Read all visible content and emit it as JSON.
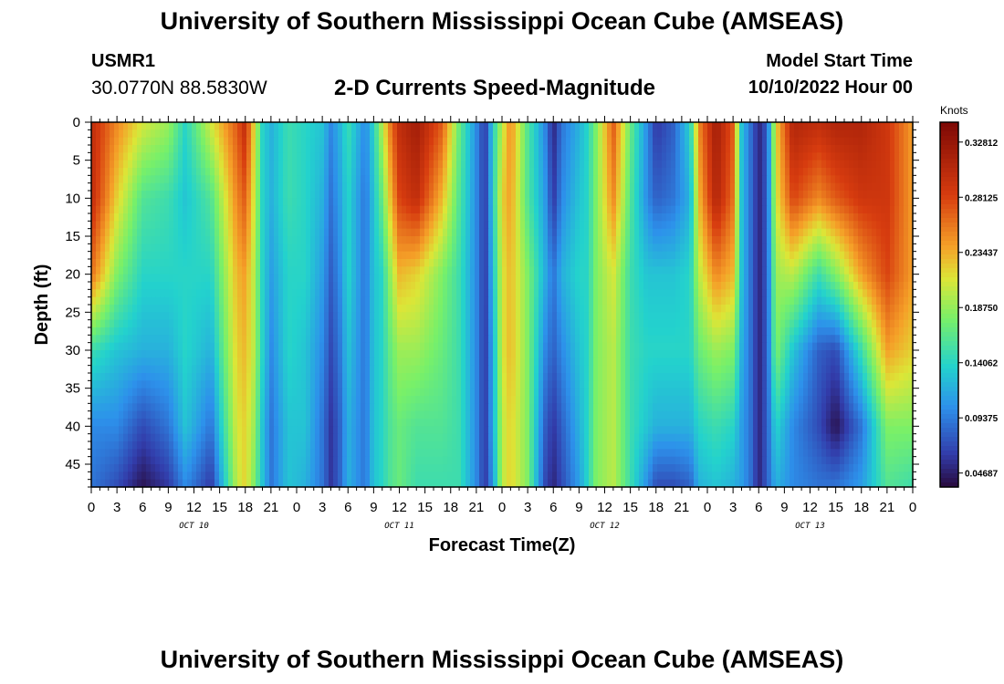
{
  "header": {
    "title": "University of Southern Mississippi Ocean Cube (AMSEAS)",
    "station_id": "USMR1",
    "station_coords": "30.0770N  88.5830W",
    "plot_title": "2-D Currents Speed-Magnitude",
    "start_label": "Model Start Time",
    "start_value": "10/10/2022 Hour 00"
  },
  "footer": {
    "title": "University of Southern Mississippi Ocean Cube (AMSEAS)"
  },
  "chart_data": {
    "type": "heatmap",
    "title": "2-D Currents Speed-Magnitude",
    "xlabel": "Forecast Time(Z)",
    "ylabel": "Depth (ft)",
    "x_range_hours": [
      0,
      96
    ],
    "x_tick_step_hours": 3,
    "x_tick_labels": [
      "0",
      "3",
      "6",
      "9",
      "12",
      "15",
      "18",
      "21",
      "0",
      "3",
      "6",
      "9",
      "12",
      "15",
      "18",
      "21",
      "0",
      "3",
      "6",
      "9",
      "12",
      "15",
      "18",
      "21",
      "0",
      "3",
      "6",
      "9",
      "12",
      "15",
      "18",
      "21",
      "0"
    ],
    "day_labels": [
      {
        "text": "OCT 10",
        "center_hour": 12
      },
      {
        "text": "OCT 11",
        "center_hour": 36
      },
      {
        "text": "OCT 12",
        "center_hour": 60
      },
      {
        "text": "OCT 13",
        "center_hour": 84
      }
    ],
    "y_range_ft": [
      0,
      48
    ],
    "y_ticks": [
      0,
      5,
      10,
      15,
      20,
      25,
      30,
      35,
      40,
      45
    ],
    "colorbar": {
      "unit": "Knots",
      "min": 0.035,
      "max": 0.345,
      "ticks": [
        "0.32812",
        "0.28125",
        "0.23437",
        "0.18750",
        "0.14062",
        "0.09375",
        "0.04687"
      ]
    },
    "profile_depths_ft": [
      0,
      10,
      20,
      30,
      40,
      48
    ],
    "speed_profiles_knots": [
      {
        "hour": 0,
        "speeds": [
          0.3,
          0.3,
          0.26,
          0.15,
          0.1,
          0.09
        ]
      },
      {
        "hour": 3,
        "speeds": [
          0.25,
          0.22,
          0.18,
          0.13,
          0.1,
          0.07
        ]
      },
      {
        "hour": 6,
        "speeds": [
          0.21,
          0.16,
          0.14,
          0.12,
          0.07,
          0.04
        ]
      },
      {
        "hour": 9,
        "speeds": [
          0.19,
          0.15,
          0.14,
          0.12,
          0.09,
          0.06
        ]
      },
      {
        "hour": 11,
        "speeds": [
          0.14,
          0.13,
          0.14,
          0.14,
          0.13,
          0.1
        ]
      },
      {
        "hour": 14,
        "speeds": [
          0.21,
          0.16,
          0.14,
          0.12,
          0.09,
          0.06
        ]
      },
      {
        "hour": 17,
        "speeds": [
          0.27,
          0.25,
          0.23,
          0.22,
          0.21,
          0.2
        ]
      },
      {
        "hour": 18,
        "speeds": [
          0.3,
          0.27,
          0.24,
          0.23,
          0.22,
          0.22
        ]
      },
      {
        "hour": 19,
        "speeds": [
          0.22,
          0.21,
          0.2,
          0.2,
          0.19,
          0.18
        ]
      },
      {
        "hour": 20,
        "speeds": [
          0.14,
          0.14,
          0.14,
          0.14,
          0.13,
          0.13
        ]
      },
      {
        "hour": 21,
        "speeds": [
          0.12,
          0.12,
          0.11,
          0.1,
          0.09,
          0.09
        ]
      },
      {
        "hour": 23,
        "speeds": [
          0.15,
          0.15,
          0.14,
          0.14,
          0.13,
          0.13
        ]
      },
      {
        "hour": 25,
        "speeds": [
          0.14,
          0.14,
          0.14,
          0.13,
          0.13,
          0.12
        ]
      },
      {
        "hour": 27,
        "speeds": [
          0.13,
          0.12,
          0.11,
          0.1,
          0.09,
          0.09
        ]
      },
      {
        "hour": 28,
        "speeds": [
          0.1,
          0.09,
          0.08,
          0.07,
          0.06,
          0.06
        ]
      },
      {
        "hour": 29,
        "speeds": [
          0.12,
          0.11,
          0.1,
          0.09,
          0.08,
          0.08
        ]
      },
      {
        "hour": 30,
        "speeds": [
          0.15,
          0.14,
          0.14,
          0.13,
          0.12,
          0.12
        ]
      },
      {
        "hour": 32,
        "speeds": [
          0.1,
          0.09,
          0.09,
          0.09,
          0.09,
          0.09
        ]
      },
      {
        "hour": 33,
        "speeds": [
          0.14,
          0.13,
          0.13,
          0.13,
          0.13,
          0.13
        ]
      },
      {
        "hour": 34,
        "speeds": [
          0.2,
          0.17,
          0.14,
          0.14,
          0.14,
          0.14
        ]
      },
      {
        "hour": 35,
        "speeds": [
          0.26,
          0.23,
          0.19,
          0.17,
          0.16,
          0.16
        ]
      },
      {
        "hour": 36,
        "speeds": [
          0.3,
          0.28,
          0.23,
          0.19,
          0.17,
          0.17
        ]
      },
      {
        "hour": 38,
        "speeds": [
          0.32,
          0.3,
          0.22,
          0.19,
          0.16,
          0.15
        ]
      },
      {
        "hour": 41,
        "speeds": [
          0.27,
          0.23,
          0.18,
          0.17,
          0.16,
          0.15
        ]
      },
      {
        "hour": 43,
        "speeds": [
          0.17,
          0.16,
          0.15,
          0.15,
          0.15,
          0.15
        ]
      },
      {
        "hour": 45,
        "speeds": [
          0.1,
          0.1,
          0.1,
          0.1,
          0.1,
          0.1
        ]
      },
      {
        "hour": 46,
        "speeds": [
          0.06,
          0.06,
          0.06,
          0.06,
          0.06,
          0.06
        ]
      },
      {
        "hour": 47,
        "speeds": [
          0.14,
          0.14,
          0.13,
          0.12,
          0.12,
          0.11
        ]
      },
      {
        "hour": 48,
        "speeds": [
          0.2,
          0.22,
          0.21,
          0.21,
          0.2,
          0.2
        ]
      },
      {
        "hour": 49,
        "speeds": [
          0.25,
          0.24,
          0.23,
          0.23,
          0.22,
          0.22
        ]
      },
      {
        "hour": 51,
        "speeds": [
          0.16,
          0.16,
          0.18,
          0.18,
          0.18,
          0.18
        ]
      },
      {
        "hour": 53,
        "speeds": [
          0.1,
          0.11,
          0.12,
          0.1,
          0.08,
          0.07
        ]
      },
      {
        "hour": 54,
        "speeds": [
          0.05,
          0.06,
          0.09,
          0.08,
          0.06,
          0.05
        ]
      },
      {
        "hour": 55,
        "speeds": [
          0.09,
          0.1,
          0.12,
          0.1,
          0.08,
          0.07
        ]
      },
      {
        "hour": 57,
        "speeds": [
          0.12,
          0.13,
          0.14,
          0.13,
          0.12,
          0.11
        ]
      },
      {
        "hour": 58,
        "speeds": [
          0.14,
          0.14,
          0.14,
          0.14,
          0.14,
          0.14
        ]
      },
      {
        "hour": 59,
        "speeds": [
          0.18,
          0.18,
          0.18,
          0.18,
          0.18,
          0.18
        ]
      },
      {
        "hour": 61,
        "speeds": [
          0.27,
          0.25,
          0.21,
          0.2,
          0.2,
          0.2
        ]
      },
      {
        "hour": 63,
        "speeds": [
          0.17,
          0.16,
          0.15,
          0.15,
          0.15,
          0.15
        ]
      },
      {
        "hour": 65,
        "speeds": [
          0.1,
          0.1,
          0.13,
          0.14,
          0.13,
          0.1
        ]
      },
      {
        "hour": 66,
        "speeds": [
          0.06,
          0.08,
          0.13,
          0.14,
          0.12,
          0.07
        ]
      },
      {
        "hour": 68,
        "speeds": [
          0.08,
          0.09,
          0.13,
          0.14,
          0.12,
          0.07
        ]
      },
      {
        "hour": 70,
        "speeds": [
          0.14,
          0.12,
          0.14,
          0.14,
          0.12,
          0.08
        ]
      },
      {
        "hour": 71,
        "speeds": [
          0.25,
          0.23,
          0.2,
          0.17,
          0.14,
          0.12
        ]
      },
      {
        "hour": 73,
        "speeds": [
          0.32,
          0.31,
          0.25,
          0.19,
          0.15,
          0.13
        ]
      },
      {
        "hour": 75,
        "speeds": [
          0.27,
          0.26,
          0.23,
          0.18,
          0.14,
          0.12
        ]
      },
      {
        "hour": 76,
        "speeds": [
          0.13,
          0.13,
          0.13,
          0.12,
          0.11,
          0.11
        ]
      },
      {
        "hour": 77,
        "speeds": [
          0.09,
          0.09,
          0.09,
          0.09,
          0.09,
          0.09
        ]
      },
      {
        "hour": 78,
        "speeds": [
          0.05,
          0.05,
          0.05,
          0.05,
          0.05,
          0.05
        ]
      },
      {
        "hour": 79,
        "speeds": [
          0.08,
          0.08,
          0.08,
          0.08,
          0.08,
          0.08
        ]
      },
      {
        "hour": 80,
        "speeds": [
          0.22,
          0.21,
          0.19,
          0.18,
          0.14,
          0.12
        ]
      },
      {
        "hour": 82,
        "speeds": [
          0.31,
          0.28,
          0.2,
          0.13,
          0.1,
          0.1
        ]
      },
      {
        "hour": 85,
        "speeds": [
          0.3,
          0.25,
          0.15,
          0.08,
          0.07,
          0.09
        ]
      },
      {
        "hour": 87,
        "speeds": [
          0.31,
          0.27,
          0.18,
          0.07,
          0.04,
          0.09
        ]
      },
      {
        "hour": 90,
        "speeds": [
          0.31,
          0.29,
          0.24,
          0.15,
          0.09,
          0.11
        ]
      },
      {
        "hour": 93,
        "speeds": [
          0.29,
          0.29,
          0.28,
          0.24,
          0.18,
          0.16
        ]
      },
      {
        "hour": 96,
        "speeds": [
          0.24,
          0.24,
          0.24,
          0.22,
          0.18,
          0.15
        ]
      }
    ]
  }
}
